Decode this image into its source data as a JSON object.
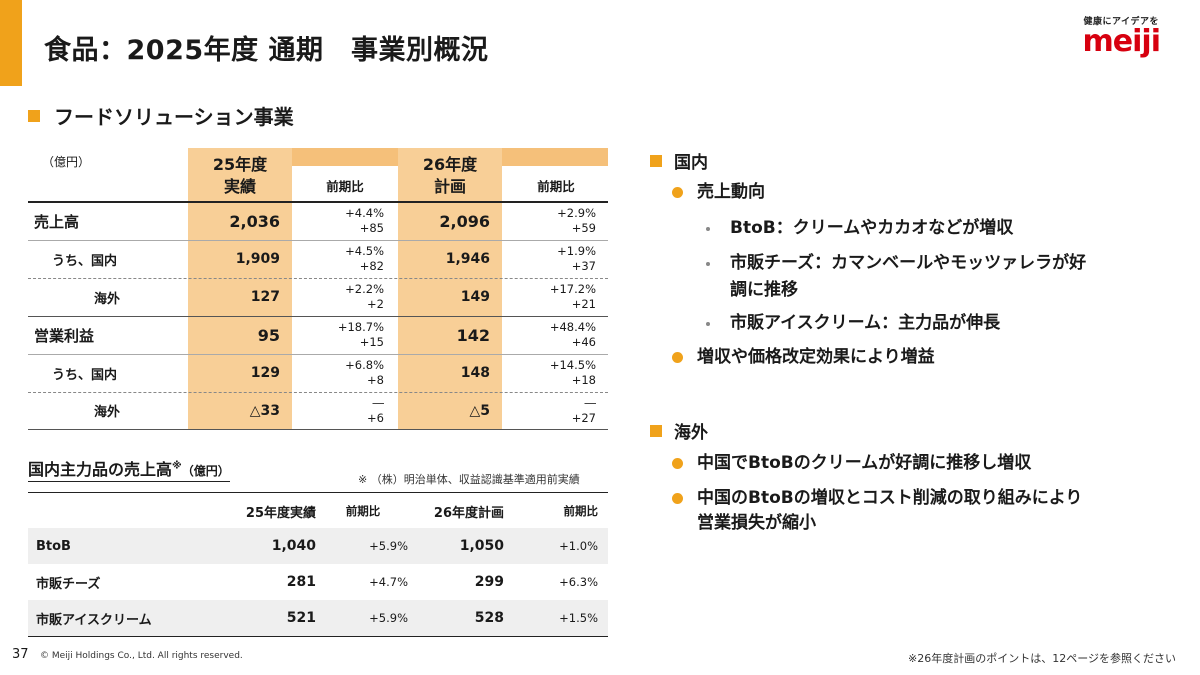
{
  "header": {
    "title": "食品：2025年度 通期　事業別概況",
    "logo_tagline": "健康にアイデアを",
    "logo_text": "meiji",
    "brand_color": "#d7000f",
    "accent_color": "#f0a21b"
  },
  "section_title": "フードソリューション事業",
  "main_table": {
    "unit": "（億円）",
    "col_fy25": "25年度\n実績",
    "col_fy25_line1": "25年度",
    "col_fy25_line2": "実績",
    "col_change1": "前期比",
    "col_fy26_line1": "26年度",
    "col_fy26_line2": "計画",
    "col_change2": "前期比",
    "rows": [
      {
        "label": "売上高",
        "v25": "2,036",
        "c25a": "+4.4%",
        "c25b": "+85",
        "v26": "2,096",
        "c26a": "+2.9%",
        "c26b": "+59"
      },
      {
        "label": "うち、国内",
        "v25": "1,909",
        "c25a": "+4.5%",
        "c25b": "+82",
        "v26": "1,946",
        "c26a": "+1.9%",
        "c26b": "+37"
      },
      {
        "label": "海外",
        "v25": "127",
        "c25a": "+2.2%",
        "c25b": "+2",
        "v26": "149",
        "c26a": "+17.2%",
        "c26b": "+21"
      },
      {
        "label": "営業利益",
        "v25": "95",
        "c25a": "+18.7%",
        "c25b": "+15",
        "v26": "142",
        "c26a": "+48.4%",
        "c26b": "+46"
      },
      {
        "label": "うち、国内",
        "v25": "129",
        "c25a": "+6.8%",
        "c25b": "+8",
        "v26": "148",
        "c26a": "+14.5%",
        "c26b": "+18"
      },
      {
        "label": "海外",
        "v25": "△33",
        "c25a": "―",
        "c25b": "+6",
        "v26": "△5",
        "c26a": "―",
        "c26b": "+27"
      }
    ]
  },
  "products_table": {
    "title": "国内主力品の売上高",
    "title_mark": "※",
    "unit": "（億円）",
    "note": "※ （株）明治単体、収益認識基準適用前実績",
    "headers": [
      "25年度実績",
      "前期比",
      "26年度計画",
      "前期比"
    ],
    "rows": [
      {
        "label": "BtoB",
        "v25": "1,040",
        "c25": "+5.9%",
        "v26": "1,050",
        "c26": "+1.0%"
      },
      {
        "label": "市販チーズ",
        "v25": "281",
        "c25": "+4.7%",
        "v26": "299",
        "c26": "+6.3%"
      },
      {
        "label": "市販アイスクリーム",
        "v25": "521",
        "c25": "+5.9%",
        "v26": "528",
        "c26": "+1.5%"
      }
    ]
  },
  "domestic": {
    "heading": "国内",
    "bullet1": "売上動向",
    "sub1": "BtoB：クリームやカカオなどが増収",
    "sub2_line1": "市販チーズ：カマンベールやモッツァレラが好",
    "sub2_line2": "調に推移",
    "sub3": "市販アイスクリーム：主力品が伸長",
    "bullet2": "増収や価格改定効果により増益"
  },
  "overseas": {
    "heading": "海外",
    "bullet1": "中国でBtoBのクリームが好調に推移し増収",
    "bullet2_line1": "中国のBtoBの増収とコスト削減の取り組みにより",
    "bullet2_line2": "営業損失が縮小"
  },
  "footer": {
    "page": "37",
    "copyright": "© Meiji Holdings Co., Ltd. All rights reserved.",
    "note": "※26年度計画のポイントは、12ページを参照ください"
  }
}
